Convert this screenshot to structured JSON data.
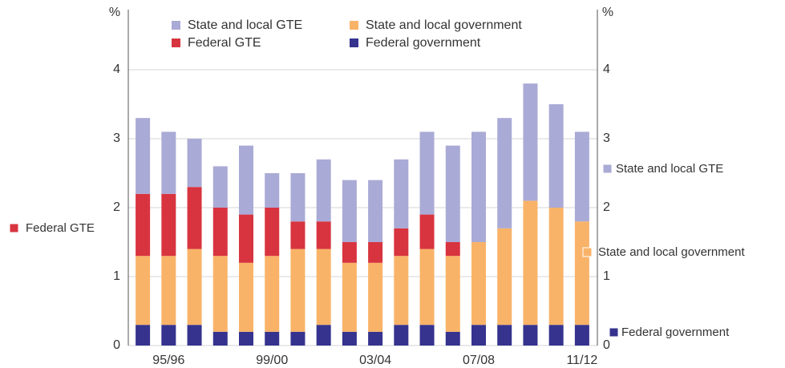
{
  "chart_data": {
    "type": "stacked_bar",
    "y_label": "%",
    "y2_label": "%",
    "categories": [
      null,
      "95/96",
      null,
      null,
      null,
      "99/00",
      null,
      null,
      null,
      "03/04",
      null,
      null,
      null,
      "07/08",
      null,
      null,
      null,
      "11/12"
    ],
    "series": [
      {
        "name": "Federal government",
        "color": "#35338e",
        "values": [
          0.3,
          0.3,
          0.3,
          0.2,
          0.2,
          0.2,
          0.2,
          0.3,
          0.2,
          0.2,
          0.3,
          0.3,
          0.2,
          0.3,
          0.3,
          0.3,
          0.3,
          0.3
        ]
      },
      {
        "name": "State and local government",
        "color": "#f9b368",
        "values": [
          1.0,
          1.0,
          1.1,
          1.1,
          1.0,
          1.1,
          1.2,
          1.1,
          1.0,
          1.0,
          1.0,
          1.1,
          1.1,
          1.2,
          1.4,
          1.8,
          1.7,
          1.5
        ]
      },
      {
        "name": "Federal GTE",
        "color": "#d8343f",
        "values": [
          0.9,
          0.9,
          0.9,
          0.7,
          0.7,
          0.7,
          0.4,
          0.4,
          0.3,
          0.3,
          0.4,
          0.5,
          0.2,
          0,
          0,
          0,
          0,
          0
        ]
      },
      {
        "name": "State and local GTE",
        "color": "#aaaad6",
        "values": [
          1.1,
          0.9,
          0.7,
          0.6,
          1.0,
          0.5,
          0.7,
          0.9,
          0.9,
          0.9,
          1.0,
          1.2,
          1.4,
          1.6,
          1.6,
          1.7,
          1.5,
          1.3
        ]
      }
    ],
    "ylim": [
      0,
      4.8
    ],
    "yticks": [
      0,
      1,
      2,
      3,
      4
    ],
    "y2lim": [
      0,
      4.8
    ],
    "y2ticks": [
      0,
      1,
      2,
      3,
      4
    ],
    "grid": true
  }
}
